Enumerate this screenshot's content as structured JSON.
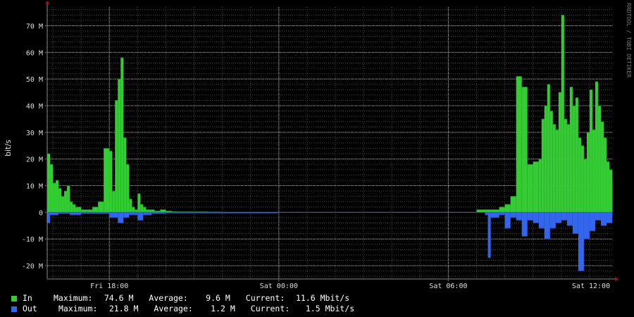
{
  "watermark": "RRDTOOL / TOBI OETIKER",
  "chart_data": {
    "type": "area",
    "ylabel": "bit/s",
    "ylim": [
      -25,
      77
    ],
    "y_ticks": [
      {
        "value": 70,
        "label": "70 M"
      },
      {
        "value": 60,
        "label": "60 M"
      },
      {
        "value": 50,
        "label": "50 M"
      },
      {
        "value": 40,
        "label": "40 M"
      },
      {
        "value": 30,
        "label": "30 M"
      },
      {
        "value": 20,
        "label": "20 M"
      },
      {
        "value": 10,
        "label": "10 M"
      },
      {
        "value": 0,
        "label": "0"
      },
      {
        "value": -10,
        "label": "-10 M"
      },
      {
        "value": -20,
        "label": "-20 M"
      }
    ],
    "xlim": [
      15.8,
      35.8
    ],
    "x_ticks": [
      {
        "value": 18,
        "label": "Fri 18:00"
      },
      {
        "value": 24,
        "label": "Sat 00:00"
      },
      {
        "value": 30,
        "label": "Sat 06:00"
      },
      {
        "value": 36,
        "label": "Sat 12:00"
      }
    ],
    "grid": true,
    "series": [
      {
        "name": "In",
        "color": "#33cc33",
        "x": [
          15.8,
          15.9,
          16.0,
          16.1,
          16.2,
          16.3,
          16.4,
          16.5,
          16.6,
          16.7,
          16.8,
          16.9,
          17.0,
          17.2,
          17.4,
          17.6,
          17.8,
          18.0,
          18.1,
          18.2,
          18.3,
          18.4,
          18.5,
          18.6,
          18.7,
          18.8,
          18.9,
          19.0,
          19.1,
          19.2,
          19.3,
          19.4,
          19.5,
          19.6,
          19.8,
          20.0,
          20.2,
          20.4,
          21.0,
          21.5,
          22.0,
          23.0,
          24.0,
          26.0,
          28.0,
          30.0,
          31.0,
          31.5,
          31.8,
          32.0,
          32.2,
          32.4,
          32.6,
          32.8,
          33.0,
          33.2,
          33.3,
          33.4,
          33.5,
          33.6,
          33.7,
          33.8,
          33.9,
          34.0,
          34.1,
          34.2,
          34.3,
          34.4,
          34.5,
          34.6,
          34.7,
          34.8,
          34.9,
          35.0,
          35.1,
          35.2,
          35.3,
          35.4,
          35.5,
          35.6,
          35.7,
          35.8
        ],
        "values": [
          22,
          18,
          11,
          12,
          9,
          6,
          8,
          10,
          4,
          3,
          2,
          2,
          1,
          1,
          2,
          4,
          24,
          23,
          8,
          42,
          50,
          58,
          28,
          18,
          5,
          2,
          1,
          7,
          3,
          2,
          1,
          1,
          1,
          0.5,
          1,
          0.5,
          0.3,
          0.2,
          0.2,
          0.1,
          0,
          0,
          0,
          0,
          0,
          0,
          1,
          1,
          2,
          3,
          6,
          51,
          47,
          18,
          19,
          20,
          35,
          40,
          48,
          38,
          33,
          31,
          45,
          74,
          35,
          33,
          47,
          40,
          43,
          28,
          25,
          20,
          30,
          46,
          31,
          49,
          40,
          34,
          28,
          19,
          16,
          12
        ]
      },
      {
        "name": "Out",
        "color": "#3366ee",
        "x": [
          15.8,
          15.9,
          16.2,
          16.6,
          17.0,
          17.5,
          18.0,
          18.3,
          18.5,
          18.7,
          19.0,
          19.2,
          19.5,
          20.0,
          24.0,
          28.0,
          30.5,
          31.3,
          31.4,
          31.5,
          31.8,
          32.0,
          32.2,
          32.4,
          32.6,
          32.8,
          33.0,
          33.2,
          33.4,
          33.6,
          33.8,
          34.0,
          34.2,
          34.4,
          34.6,
          34.8,
          35.0,
          35.2,
          35.4,
          35.6,
          35.8
        ],
        "values": [
          -4,
          -1,
          -0.5,
          -1,
          -0.5,
          -0.5,
          -2,
          -4,
          -2,
          -1,
          -3,
          -1,
          -0.5,
          -0.3,
          0,
          0,
          0,
          -1,
          -17,
          -2,
          -1,
          -6,
          -2,
          -3,
          -9,
          -3,
          -4,
          -6,
          -10,
          -6,
          -4,
          -3,
          -5,
          -8,
          -22,
          -10,
          -7,
          -3,
          -5,
          -4,
          -2
        ]
      }
    ],
    "legend": [
      {
        "name": "In",
        "color": "#33cc33",
        "max_label": "Maximum:",
        "max": "74.6 M",
        "avg_label": "Average:",
        "avg": "9.6 M",
        "cur_label": "Current:",
        "cur": "11.6 Mbit/s"
      },
      {
        "name": "Out",
        "color": "#3366ee",
        "max_label": "Maximum:",
        "max": "21.8 M",
        "avg_label": "Average:",
        "avg": "1.2 M",
        "cur_label": "Current:",
        "cur": "1.5 Mbit/s"
      }
    ]
  }
}
